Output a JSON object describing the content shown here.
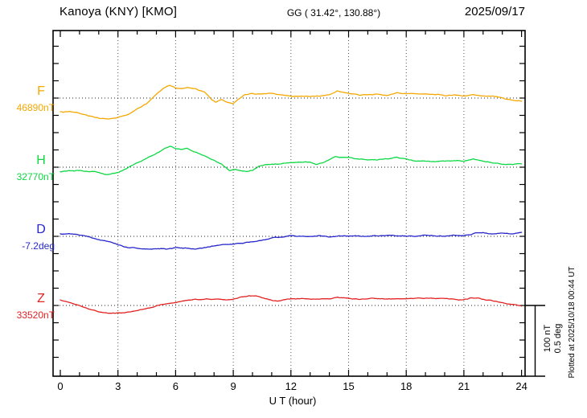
{
  "header": {
    "station_title": "Kanoya (KNY)  [KMO]",
    "coords": "GG ( 31.42°, 130.88°)",
    "date": "2025/09/17"
  },
  "chart_data": {
    "type": "line",
    "title": "Kanoya (KNY) [KMO] magnetogram 2025/09/17",
    "xlabel": "U T (hour)",
    "x_range": [
      0,
      24
    ],
    "x_ticks": [
      0,
      3,
      6,
      9,
      12,
      15,
      18,
      21,
      24
    ],
    "grid_hours": [
      3,
      6,
      9,
      12,
      15,
      18,
      21
    ],
    "grid_style": "dotted",
    "division_nT": 100,
    "division_deg": 0.5,
    "y_tick_interval_nT": 25,
    "scalebar": {
      "lines": [
        "100 nT",
        "0.5 deg"
      ]
    },
    "plot_note": "Plotted at 2025/10/18 00:44 UT",
    "series": [
      {
        "name": "F",
        "unit": "nT",
        "base_value": 46890,
        "base_label": "46890nT",
        "color": "#f5a800",
        "points": [
          [
            0,
            -20
          ],
          [
            0.5,
            -20
          ],
          [
            1,
            -22
          ],
          [
            1.5,
            -25
          ],
          [
            2,
            -28
          ],
          [
            2.5,
            -30
          ],
          [
            3,
            -28
          ],
          [
            3.5,
            -23
          ],
          [
            4,
            -15
          ],
          [
            4.5,
            -7
          ],
          [
            5,
            7
          ],
          [
            5.4,
            16
          ],
          [
            5.7,
            19
          ],
          [
            6,
            15
          ],
          [
            6.3,
            14
          ],
          [
            6.6,
            16
          ],
          [
            7,
            14
          ],
          [
            7.5,
            9
          ],
          [
            7.9,
            -3
          ],
          [
            8.1,
            -6
          ],
          [
            8.4,
            -3
          ],
          [
            8.7,
            -7
          ],
          [
            9,
            -8
          ],
          [
            9.3,
            -2
          ],
          [
            9.6,
            4
          ],
          [
            10,
            6
          ],
          [
            10.5,
            5
          ],
          [
            11,
            6
          ],
          [
            11.5,
            4
          ],
          [
            12,
            3
          ],
          [
            12.5,
            4
          ],
          [
            13,
            3
          ],
          [
            13.5,
            4
          ],
          [
            14,
            6
          ],
          [
            14.4,
            11
          ],
          [
            14.8,
            9
          ],
          [
            15.2,
            7
          ],
          [
            15.6,
            5
          ],
          [
            16,
            5
          ],
          [
            16.5,
            6
          ],
          [
            17,
            5
          ],
          [
            17.5,
            7
          ],
          [
            18,
            6
          ],
          [
            18.5,
            5
          ],
          [
            19,
            6
          ],
          [
            19.5,
            5
          ],
          [
            20,
            4
          ],
          [
            20.5,
            5
          ],
          [
            21,
            4
          ],
          [
            21.5,
            6
          ],
          [
            22,
            4
          ],
          [
            22.5,
            3
          ],
          [
            23,
            -1
          ],
          [
            23.5,
            -4
          ],
          [
            24,
            -5
          ]
        ]
      },
      {
        "name": "H",
        "unit": "nT",
        "base_value": 32770,
        "base_label": "32770nT",
        "color": "#0cd943",
        "points": [
          [
            0,
            -7
          ],
          [
            0.5,
            -6
          ],
          [
            1,
            -6
          ],
          [
            1.5,
            -7
          ],
          [
            2,
            -8
          ],
          [
            2.4,
            -10
          ],
          [
            2.7,
            -8
          ],
          [
            3,
            -7
          ],
          [
            3.3,
            -4
          ],
          [
            3.6,
            1
          ],
          [
            4,
            7
          ],
          [
            4.5,
            14
          ],
          [
            5,
            21
          ],
          [
            5.4,
            27
          ],
          [
            5.7,
            30
          ],
          [
            6,
            27
          ],
          [
            6.3,
            26
          ],
          [
            6.6,
            27
          ],
          [
            7,
            23
          ],
          [
            7.5,
            17
          ],
          [
            8,
            11
          ],
          [
            8.4,
            5
          ],
          [
            8.8,
            -4
          ],
          [
            9.1,
            -2
          ],
          [
            9.4,
            -4
          ],
          [
            9.7,
            -6
          ],
          [
            10,
            -4
          ],
          [
            10.3,
            2
          ],
          [
            10.7,
            5
          ],
          [
            11,
            5
          ],
          [
            11.5,
            6
          ],
          [
            12,
            8
          ],
          [
            12.5,
            7
          ],
          [
            13,
            6
          ],
          [
            13.3,
            4
          ],
          [
            13.7,
            7
          ],
          [
            14,
            10
          ],
          [
            14.3,
            14
          ],
          [
            14.7,
            13
          ],
          [
            15,
            13
          ],
          [
            15.5,
            11
          ],
          [
            16,
            10
          ],
          [
            16.5,
            10
          ],
          [
            17,
            12
          ],
          [
            17.5,
            14
          ],
          [
            18,
            12
          ],
          [
            18.5,
            10
          ],
          [
            19,
            10
          ],
          [
            19.5,
            9
          ],
          [
            20,
            9
          ],
          [
            20.5,
            10
          ],
          [
            21,
            9
          ],
          [
            21.5,
            12
          ],
          [
            22,
            9
          ],
          [
            22.5,
            7
          ],
          [
            23,
            5
          ],
          [
            23.5,
            5
          ],
          [
            24,
            6
          ]
        ]
      },
      {
        "name": "D",
        "unit": "deg",
        "base_value": -7.2,
        "base_label": "-7.2deg",
        "color": "#2626cc",
        "points": [
          [
            0,
            0.017
          ],
          [
            0.5,
            0.012
          ],
          [
            1,
            0.006
          ],
          [
            1.5,
            -0.006
          ],
          [
            2,
            -0.023
          ],
          [
            2.5,
            -0.041
          ],
          [
            3,
            -0.058
          ],
          [
            3.5,
            -0.076
          ],
          [
            4,
            -0.081
          ],
          [
            4.5,
            -0.087
          ],
          [
            5,
            -0.087
          ],
          [
            5.5,
            -0.093
          ],
          [
            6,
            -0.087
          ],
          [
            6.5,
            -0.087
          ],
          [
            7,
            -0.087
          ],
          [
            7.5,
            -0.076
          ],
          [
            8,
            -0.064
          ],
          [
            8.5,
            -0.052
          ],
          [
            9,
            -0.052
          ],
          [
            9.5,
            -0.047
          ],
          [
            10,
            -0.035
          ],
          [
            10.5,
            -0.023
          ],
          [
            11,
            -0.012
          ],
          [
            11.5,
            -0.006
          ],
          [
            12,
            0.006
          ],
          [
            12.5,
            0
          ],
          [
            13,
            0
          ],
          [
            13.5,
            0.006
          ],
          [
            14,
            0
          ],
          [
            14.5,
            0.006
          ],
          [
            15,
            0.006
          ],
          [
            15.5,
            0.006
          ],
          [
            16,
            0.006
          ],
          [
            16.5,
            0.006
          ],
          [
            17,
            0.012
          ],
          [
            17.5,
            0.006
          ],
          [
            18,
            0.006
          ],
          [
            18.5,
            0.006
          ],
          [
            19,
            0.012
          ],
          [
            19.5,
            0.006
          ],
          [
            20,
            0.006
          ],
          [
            20.5,
            0.012
          ],
          [
            21,
            0.006
          ],
          [
            21.3,
            0.012
          ],
          [
            21.6,
            0.029
          ],
          [
            22,
            0.029
          ],
          [
            22.5,
            0.023
          ],
          [
            23,
            0.029
          ],
          [
            23.5,
            0.023
          ],
          [
            24,
            0.035
          ]
        ]
      },
      {
        "name": "Z",
        "unit": "nT",
        "base_value": 33520,
        "base_label": "33520nT",
        "color": "#e32222",
        "points": [
          [
            0,
            8
          ],
          [
            0.5,
            5
          ],
          [
            1,
            1
          ],
          [
            1.5,
            -4
          ],
          [
            2,
            -8
          ],
          [
            2.5,
            -10
          ],
          [
            3,
            -10
          ],
          [
            3.5,
            -9
          ],
          [
            4,
            -7
          ],
          [
            4.5,
            -4
          ],
          [
            5,
            -1
          ],
          [
            5.5,
            1
          ],
          [
            6,
            3
          ],
          [
            6.5,
            6
          ],
          [
            7,
            9
          ],
          [
            7.5,
            10
          ],
          [
            8,
            9
          ],
          [
            8.5,
            9
          ],
          [
            9,
            10
          ],
          [
            9.4,
            13
          ],
          [
            9.8,
            14
          ],
          [
            10.2,
            13
          ],
          [
            10.6,
            10
          ],
          [
            11,
            7
          ],
          [
            11.3,
            5
          ],
          [
            11.6,
            7
          ],
          [
            12,
            9
          ],
          [
            12.5,
            9
          ],
          [
            13,
            8
          ],
          [
            13.5,
            9
          ],
          [
            14,
            10
          ],
          [
            14.4,
            12
          ],
          [
            14.8,
            11
          ],
          [
            15,
            10
          ],
          [
            15.5,
            9
          ],
          [
            16,
            10
          ],
          [
            16.5,
            10
          ],
          [
            17,
            10
          ],
          [
            17.5,
            11
          ],
          [
            18,
            10
          ],
          [
            18.5,
            10
          ],
          [
            19,
            10
          ],
          [
            19.5,
            9
          ],
          [
            20,
            9
          ],
          [
            20.5,
            9
          ],
          [
            21,
            8
          ],
          [
            21.4,
            11
          ],
          [
            21.7,
            10
          ],
          [
            22,
            8
          ],
          [
            22.5,
            6
          ],
          [
            23,
            4
          ],
          [
            23.5,
            2
          ],
          [
            24,
            -1
          ]
        ]
      }
    ]
  }
}
